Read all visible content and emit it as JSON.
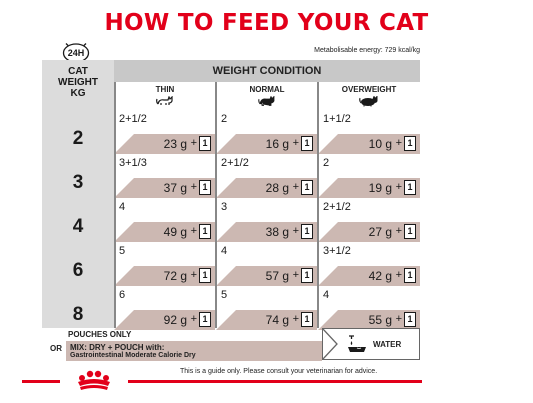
{
  "title": "HOW TO FEED YOUR CAT",
  "clock_label": "24H",
  "energy": "Metabolisable energy: 729 kcal/kg",
  "cat_weight_head": [
    "CAT",
    "WEIGHT",
    "KG"
  ],
  "weight_condition_head": "WEIGHT CONDITION",
  "conditions": [
    "THIN",
    "NORMAL",
    "OVERWEIGHT"
  ],
  "rows": [
    {
      "weight": "2",
      "cells": [
        {
          "pouches": "2+1/2",
          "grams": "23 g"
        },
        {
          "pouches": "2",
          "grams": "16 g"
        },
        {
          "pouches": "1+1/2",
          "grams": "10 g"
        }
      ]
    },
    {
      "weight": "3",
      "cells": [
        {
          "pouches": "3+1/3",
          "grams": "37 g"
        },
        {
          "pouches": "2+1/2",
          "grams": "28 g"
        },
        {
          "pouches": "2",
          "grams": "19 g"
        }
      ]
    },
    {
      "weight": "4",
      "cells": [
        {
          "pouches": "4",
          "grams": "49 g"
        },
        {
          "pouches": "3",
          "grams": "38 g"
        },
        {
          "pouches": "2+1/2",
          "grams": "27 g"
        }
      ]
    },
    {
      "weight": "6",
      "cells": [
        {
          "pouches": "5",
          "grams": "72 g"
        },
        {
          "pouches": "4",
          "grams": "57 g"
        },
        {
          "pouches": "3+1/2",
          "grams": "42 g"
        }
      ]
    },
    {
      "weight": "8",
      "cells": [
        {
          "pouches": "6",
          "grams": "92 g"
        },
        {
          "pouches": "5",
          "grams": "74 g"
        },
        {
          "pouches": "4",
          "grams": "55 g"
        }
      ]
    }
  ],
  "plus": "+",
  "pouch_count": "1",
  "pouches_only": "POUCHES ONLY",
  "or": "OR",
  "mix_line1": "MIX: DRY + POUCH with:",
  "mix_line2": "Gastrointestinal Moderate Calorie Dry",
  "water": "WATER",
  "guide": "This is a guide only. Please consult your veterinarian for advice.",
  "colors": {
    "brand_red": "#e2001a",
    "cell_rose": "#ccb8b2",
    "header_grey": "#c8c8c8"
  }
}
